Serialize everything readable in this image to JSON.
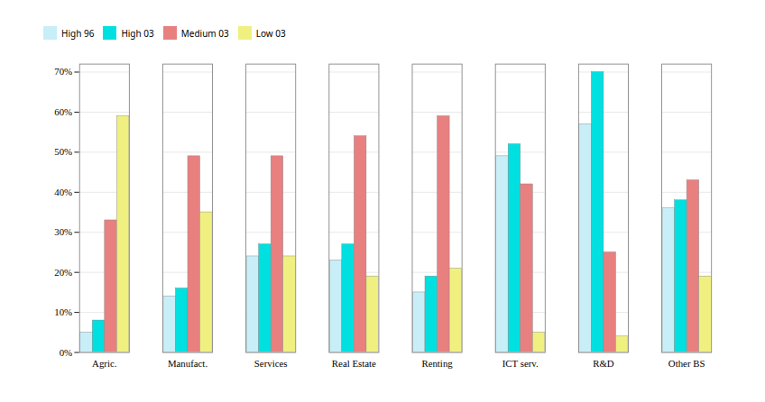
{
  "chart_data": {
    "type": "bar",
    "categories": [
      "Agric.",
      "Manufact.",
      "Services",
      "Real Estate",
      "Renting",
      "ICT serv.",
      "R&D",
      "Other BS"
    ],
    "series": [
      {
        "name": "High 96",
        "color": "#c8eef8",
        "values": [
          0.05,
          0.14,
          0.24,
          0.23,
          0.15,
          0.49,
          0.57,
          0.36
        ]
      },
      {
        "name": "High 03",
        "color": "#00e0e0",
        "values": [
          0.08,
          0.16,
          0.27,
          0.27,
          0.19,
          0.52,
          0.7,
          0.38
        ]
      },
      {
        "name": "Medium 03",
        "color": "#e88080",
        "values": [
          0.33,
          0.49,
          0.49,
          0.54,
          0.59,
          0.42,
          0.25,
          0.43
        ]
      },
      {
        "name": "Low 03",
        "color": "#f0f080",
        "values": [
          0.59,
          0.35,
          0.24,
          0.19,
          0.21,
          0.05,
          0.04,
          0.19
        ]
      }
    ],
    "ylim": [
      0,
      0.72
    ],
    "yticks": [
      {
        "value": 0.0,
        "label": "0%"
      },
      {
        "value": 0.1,
        "label": "10%"
      },
      {
        "value": 0.2,
        "label": "20%"
      },
      {
        "value": 0.3,
        "label": "30%"
      },
      {
        "value": 0.4,
        "label": "40%"
      },
      {
        "value": 0.5,
        "label": "50%"
      },
      {
        "value": 0.6,
        "label": "60%"
      },
      {
        "value": 0.7,
        "label": "70%"
      }
    ],
    "grid": true,
    "legend": "top"
  }
}
